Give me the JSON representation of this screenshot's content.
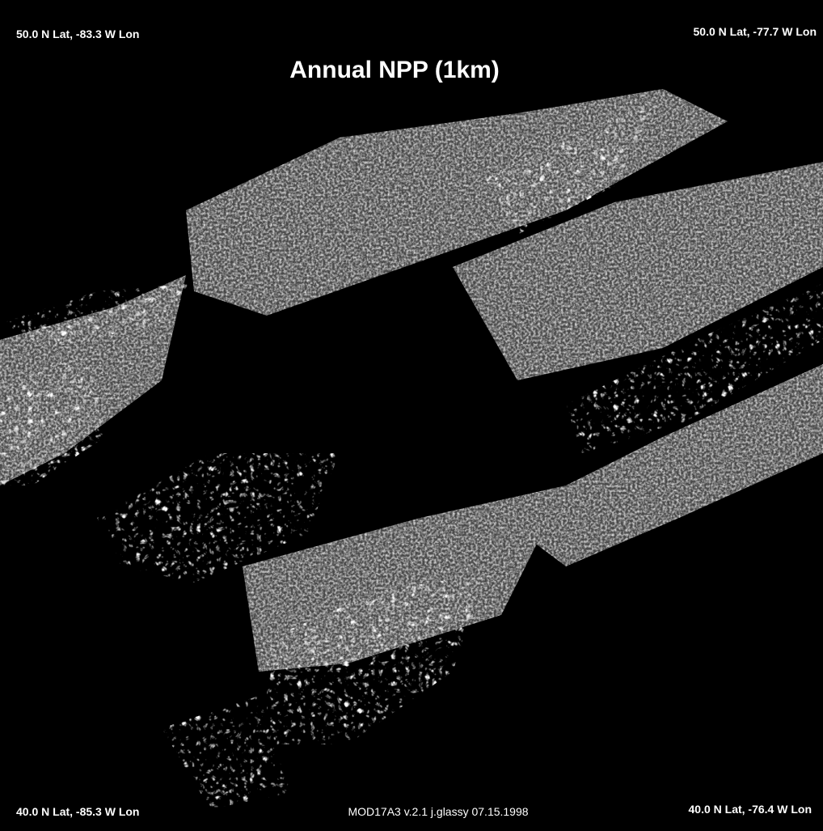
{
  "map": {
    "title": "Annual NPP (1km)",
    "corners": {
      "top_left": "50.0 N Lat, -83.3 W Lon",
      "top_right": "50.0 N Lat, -77.7 W Lon",
      "bottom_left": "40.0 N Lat, -85.3 W Lon",
      "bottom_right": "40.0 N Lat, -76.4 W Lon"
    },
    "credit": "MOD17A3 v.2.1 j.glassy 07.15.1998"
  }
}
